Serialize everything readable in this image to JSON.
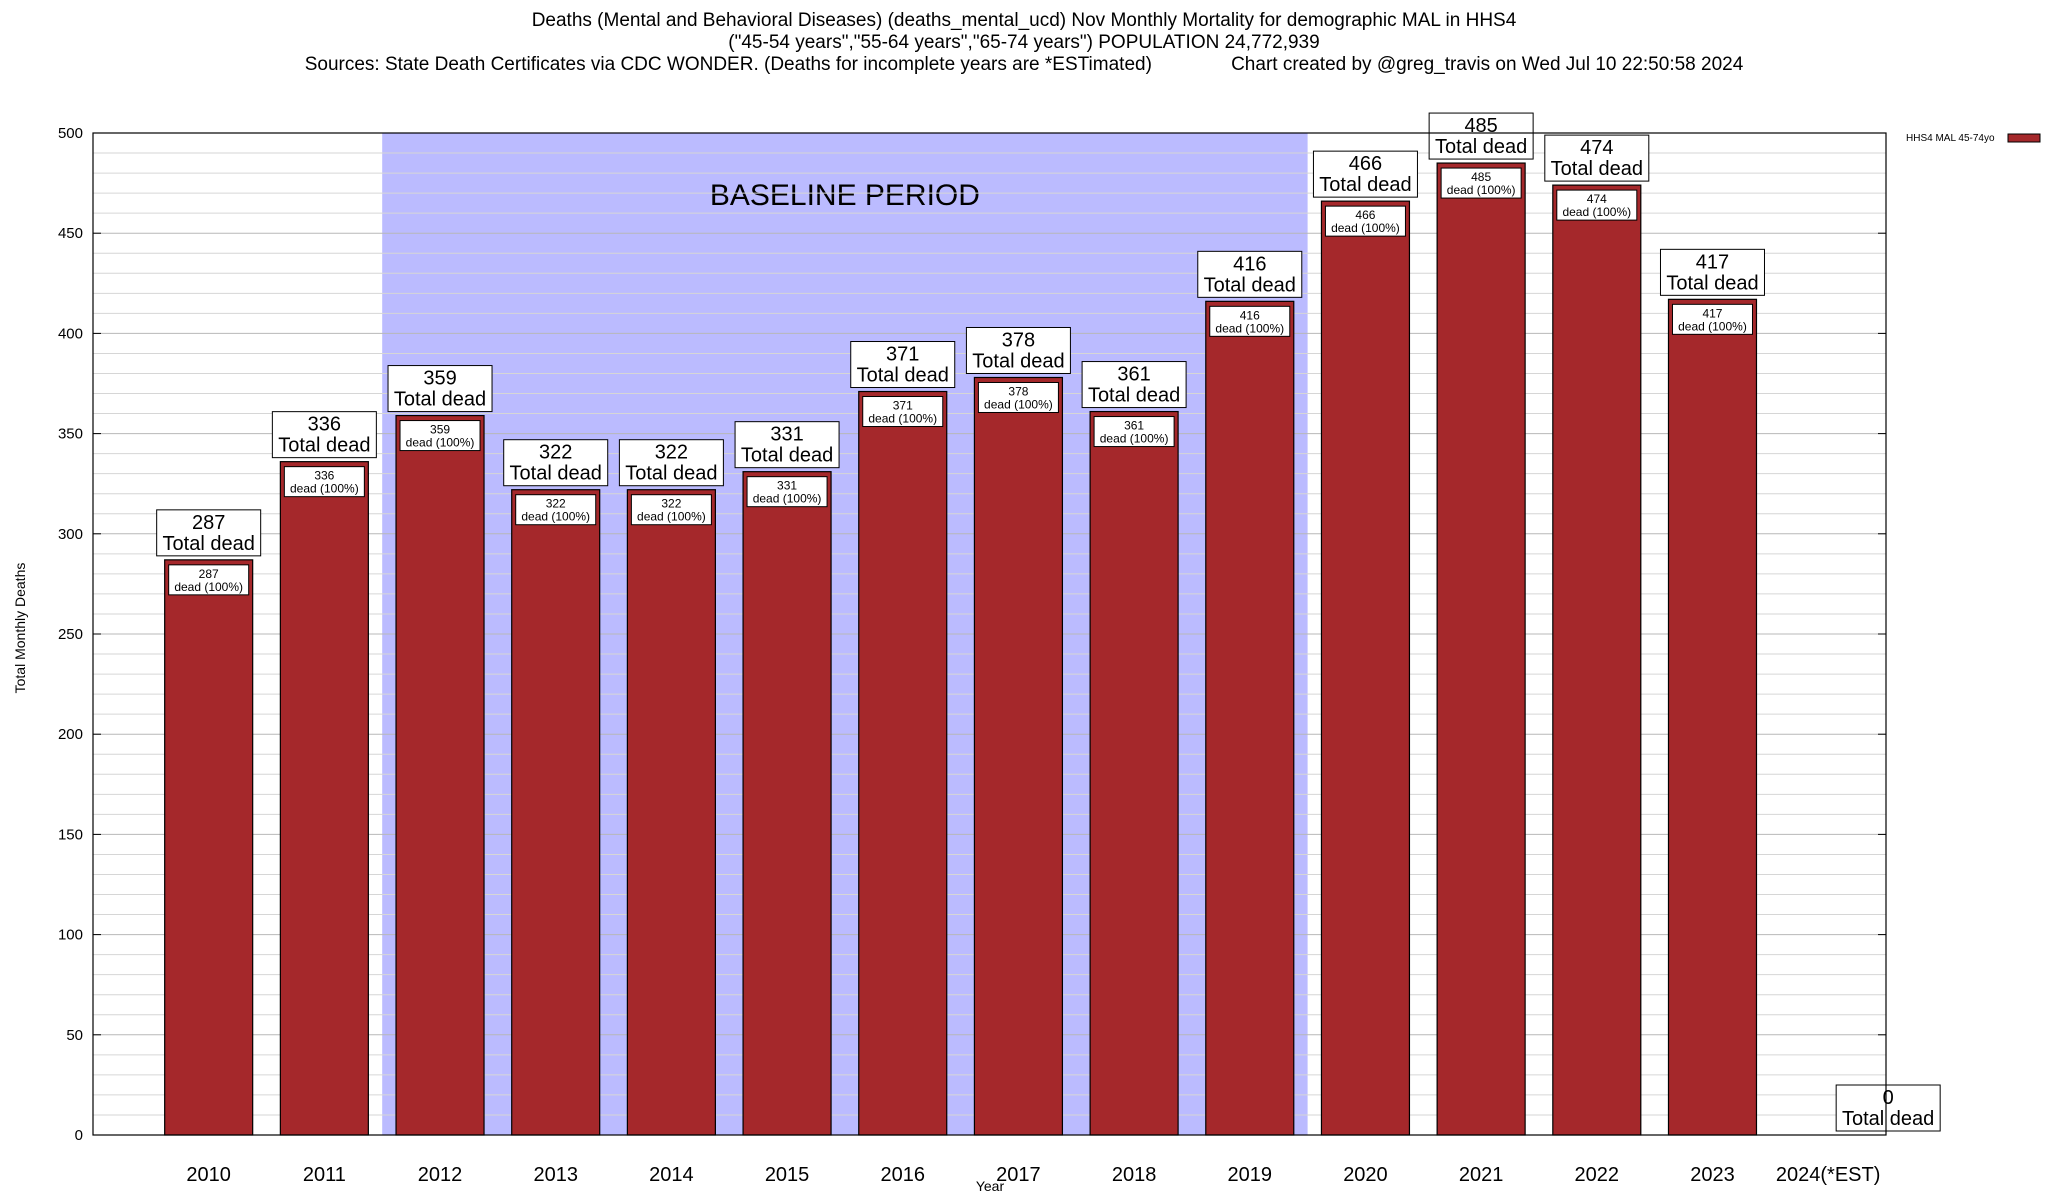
{
  "header": {
    "line1": "Deaths (Mental and Behavioral Diseases) (deaths_mental_ucd) Nov Monthly Mortality for demographic MAL in HHS4",
    "line2": "(\"45-54 years\",\"55-64 years\",\"65-74 years\") POPULATION 24,772,939",
    "line3": "Sources: State Death Certificates via CDC WONDER. (Deaths for incomplete years are *ESTimated)               Chart created by @greg_travis on Wed Jul 10 22:50:58 2024"
  },
  "chart_data": {
    "type": "bar",
    "title": "Deaths (Mental and Behavioral Diseases) (deaths_mental_ucd) Nov Monthly Mortality for demographic MAL in HHS4",
    "xlabel": "Year",
    "ylabel": "Total Monthly Deaths",
    "ylim": [
      0,
      500
    ],
    "yticks": [
      0,
      50,
      100,
      150,
      200,
      250,
      300,
      350,
      400,
      450,
      500
    ],
    "categories": [
      "2010",
      "2011",
      "2012",
      "2013",
      "2014",
      "2015",
      "2016",
      "2017",
      "2018",
      "2019",
      "2020",
      "2021",
      "2022",
      "2023",
      "2024(*EST)"
    ],
    "series": [
      {
        "name": "HHS4 MAL 45-74yo",
        "color": "#a5282b",
        "values": [
          287,
          336,
          359,
          322,
          322,
          331,
          371,
          378,
          361,
          416,
          466,
          485,
          474,
          417,
          0
        ]
      }
    ],
    "total_label": "Total dead",
    "inner_label": "dead (100%)",
    "baseline": {
      "label": "BASELINE PERIOD",
      "from": "2012",
      "to": "2019",
      "color": "#bbbbff"
    },
    "legend": {
      "position": "top-right"
    },
    "grid": true
  }
}
